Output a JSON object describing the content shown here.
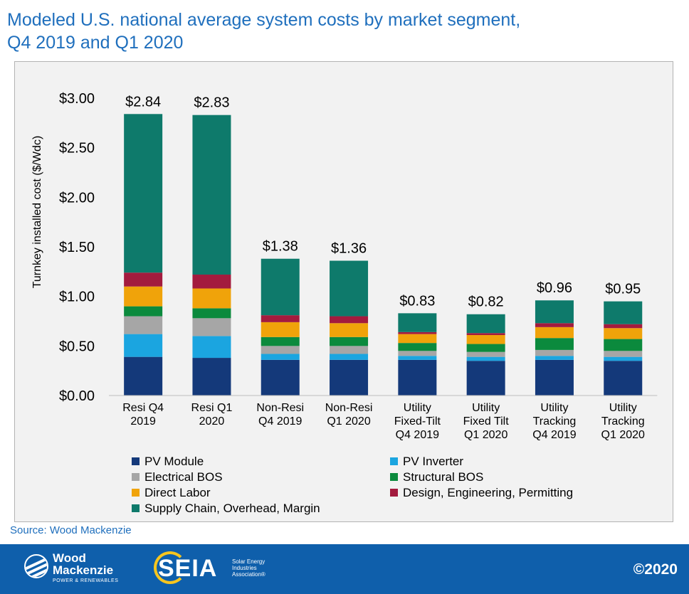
{
  "title_line1": "Modeled U.S. national average system costs by market segment,",
  "title_line2": "Q4 2019 and Q1 2020",
  "source": "Source: Wood Mackenzie",
  "footer": {
    "wm_line1": "Wood",
    "wm_line2": "Mackenzie",
    "wm_sub": "POWER & RENEWABLES",
    "seia_word": "SEIA",
    "seia_tag1": "Solar Energy",
    "seia_tag2": "Industries",
    "seia_tag3": "Association®",
    "copyright": "©2020",
    "bg_color": "#0f5fab"
  },
  "chart_data": {
    "type": "bar",
    "stacked": true,
    "ylabel": "Turnkey installed cost ($/Wdc)",
    "ylim": [
      0,
      3
    ],
    "yticks": [
      "$0.00",
      "$0.50",
      "$1.00",
      "$1.50",
      "$2.00",
      "$2.50",
      "$3.00"
    ],
    "ytick_values": [
      0,
      0.5,
      1.0,
      1.5,
      2.0,
      2.5,
      3.0
    ],
    "grid": false,
    "legend_placement": "bottom",
    "categories": [
      [
        "Resi Q4",
        "2019"
      ],
      [
        "Resi Q1",
        "2020"
      ],
      [
        "Non-Resi",
        "Q4 2019"
      ],
      [
        "Non-Resi",
        "Q1 2020"
      ],
      [
        "Utility",
        "Fixed-Tilt",
        "Q4 2019"
      ],
      [
        "Utility",
        "Fixed Tilt",
        "Q1 2020"
      ],
      [
        "Utility",
        "Tracking",
        "Q4 2019"
      ],
      [
        "Utility",
        "Tracking",
        "Q1 2020"
      ]
    ],
    "totals": [
      2.84,
      2.83,
      1.38,
      1.36,
      0.83,
      0.82,
      0.96,
      0.95
    ],
    "total_labels": [
      "$2.84",
      "$2.83",
      "$1.38",
      "$1.36",
      "$0.83",
      "$0.82",
      "$0.96",
      "$0.95"
    ],
    "series": [
      {
        "name": "PV Module",
        "color": "#14397a",
        "values": [
          0.39,
          0.38,
          0.36,
          0.36,
          0.36,
          0.35,
          0.36,
          0.35
        ]
      },
      {
        "name": "PV Inverter",
        "color": "#1ba5e0",
        "values": [
          0.23,
          0.22,
          0.06,
          0.06,
          0.04,
          0.04,
          0.04,
          0.04
        ]
      },
      {
        "name": "Electrical BOS",
        "color": "#a6a6a6",
        "values": [
          0.18,
          0.18,
          0.08,
          0.08,
          0.05,
          0.05,
          0.06,
          0.06
        ]
      },
      {
        "name": "Structural BOS",
        "color": "#0b8a3d",
        "values": [
          0.1,
          0.1,
          0.09,
          0.09,
          0.08,
          0.08,
          0.12,
          0.12
        ]
      },
      {
        "name": "Direct Labor",
        "color": "#f0a30a",
        "values": [
          0.2,
          0.2,
          0.15,
          0.14,
          0.09,
          0.09,
          0.11,
          0.11
        ]
      },
      {
        "name": "Design, Engineering, Permitting",
        "color": "#a31b3e",
        "values": [
          0.14,
          0.14,
          0.07,
          0.07,
          0.02,
          0.02,
          0.04,
          0.04
        ]
      },
      {
        "name": "Supply Chain, Overhead, Margin",
        "color": "#0e7a6b",
        "values": [
          1.6,
          1.61,
          0.57,
          0.56,
          0.19,
          0.19,
          0.23,
          0.23
        ]
      }
    ]
  }
}
